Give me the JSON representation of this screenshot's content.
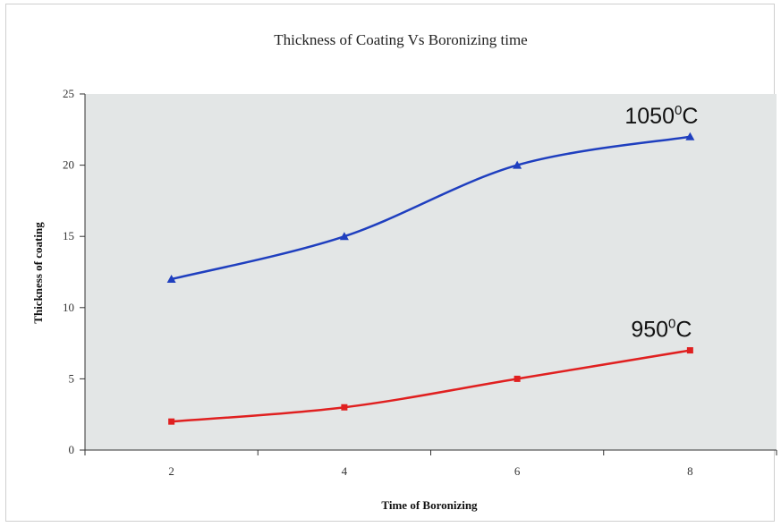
{
  "chart_data": {
    "type": "line",
    "title": "Thickness of Coating Vs Boronizing time",
    "xlabel": "Time of Boronizing",
    "ylabel": "Thickness of coating",
    "x": [
      2,
      4,
      6,
      8
    ],
    "xlim": [
      1,
      9
    ],
    "ylim": [
      0,
      25
    ],
    "xticks": [
      2,
      4,
      6,
      8
    ],
    "yticks": [
      0,
      5,
      10,
      15,
      20,
      25
    ],
    "grid": false,
    "legend": "none",
    "plot_background": "#e3e6e6",
    "series": [
      {
        "label_value": "1050",
        "label_sup": "0",
        "label_unit": "C",
        "values": [
          12,
          15,
          20,
          22
        ],
        "color": "#1f3fbf",
        "marker": "triangle"
      },
      {
        "label_value": "950",
        "label_sup": "0",
        "label_unit": "C",
        "values": [
          2,
          3,
          5,
          7
        ],
        "color": "#e02020",
        "marker": "square"
      }
    ]
  }
}
